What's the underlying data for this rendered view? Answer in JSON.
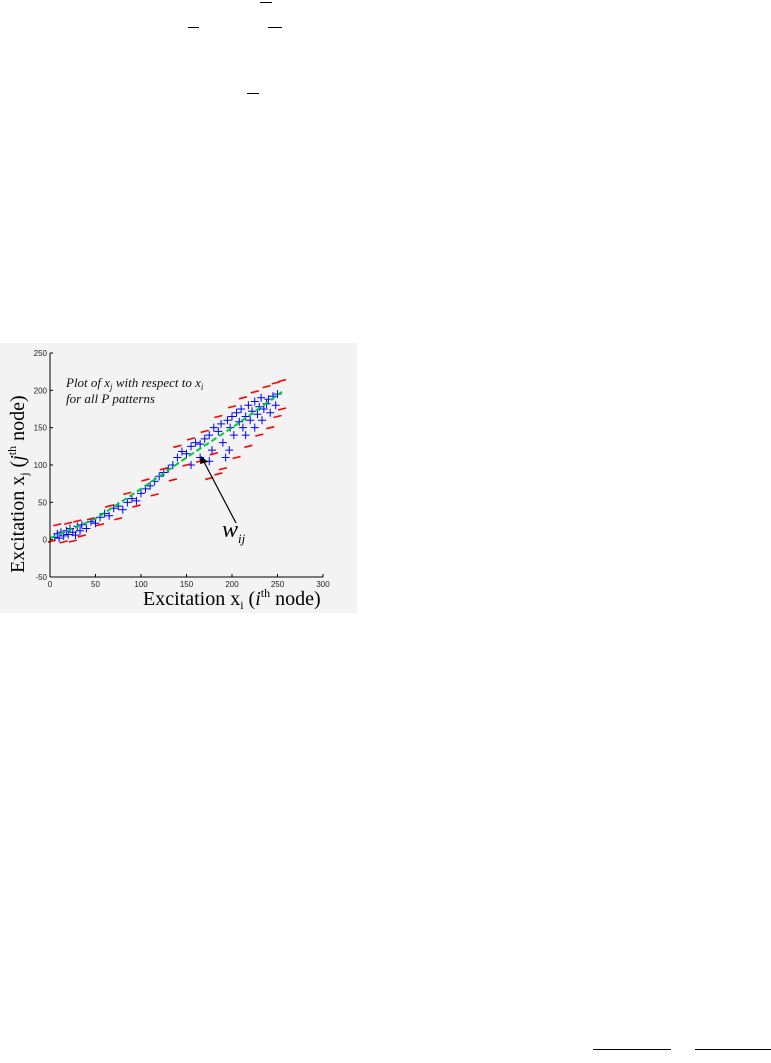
{
  "chart_data": {
    "type": "scatter",
    "title": "",
    "annotation_lines": [
      "Plot of x",
      "j",
      " with respect to x",
      "i",
      "for all P patterns"
    ],
    "pointer_label": {
      "main": "w",
      "sub": "ij"
    },
    "xlabel": {
      "text": "Excitation x",
      "sub": "i",
      "paren_open": " (",
      "var": "i",
      "sup": "th",
      "rest": " node)"
    },
    "ylabel": {
      "text": "Excitation x",
      "sub": "j",
      "paren_open": " (",
      "var": "j",
      "sup": "th",
      "rest": " node)"
    },
    "xlim": [
      0,
      300
    ],
    "ylim": [
      -50,
      250
    ],
    "xticks": [
      "0",
      "50",
      "100",
      "150",
      "200",
      "250",
      "300"
    ],
    "yticks": [
      "-50",
      "0",
      "50",
      "100",
      "150",
      "200",
      "250"
    ],
    "grid": false,
    "series": [
      {
        "marker": "+",
        "color": "#0000ff",
        "points": [
          [
            5,
            3
          ],
          [
            8,
            8
          ],
          [
            10,
            2
          ],
          [
            12,
            10
          ],
          [
            15,
            5
          ],
          [
            18,
            12
          ],
          [
            20,
            7
          ],
          [
            22,
            15
          ],
          [
            25,
            10
          ],
          [
            28,
            6
          ],
          [
            30,
            18
          ],
          [
            33,
            12
          ],
          [
            35,
            20
          ],
          [
            40,
            15
          ],
          [
            45,
            24
          ],
          [
            50,
            22
          ],
          [
            55,
            30
          ],
          [
            60,
            35
          ],
          [
            65,
            32
          ],
          [
            70,
            42
          ],
          [
            75,
            45
          ],
          [
            80,
            40
          ],
          [
            85,
            50
          ],
          [
            90,
            55
          ],
          [
            95,
            52
          ],
          [
            100,
            62
          ],
          [
            105,
            68
          ],
          [
            110,
            72
          ],
          [
            115,
            78
          ],
          [
            120,
            85
          ],
          [
            125,
            90
          ],
          [
            130,
            95
          ],
          [
            135,
            100
          ],
          [
            140,
            110
          ],
          [
            145,
            118
          ],
          [
            150,
            115
          ],
          [
            155,
            125
          ],
          [
            160,
            130
          ],
          [
            165,
            128
          ],
          [
            170,
            135
          ],
          [
            175,
            140
          ],
          [
            178,
            120
          ],
          [
            180,
            150
          ],
          [
            185,
            145
          ],
          [
            188,
            155
          ],
          [
            190,
            130
          ],
          [
            195,
            160
          ],
          [
            198,
            150
          ],
          [
            200,
            165
          ],
          [
            202,
            140
          ],
          [
            205,
            170
          ],
          [
            208,
            158
          ],
          [
            210,
            175
          ],
          [
            212,
            150
          ],
          [
            215,
            165
          ],
          [
            218,
            180
          ],
          [
            220,
            160
          ],
          [
            222,
            172
          ],
          [
            225,
            185
          ],
          [
            228,
            168
          ],
          [
            230,
            178
          ],
          [
            232,
            190
          ],
          [
            235,
            175
          ],
          [
            238,
            182
          ],
          [
            240,
            188
          ],
          [
            242,
            170
          ],
          [
            245,
            192
          ],
          [
            248,
            180
          ],
          [
            250,
            195
          ],
          [
            193,
            110
          ],
          [
            197,
            120
          ],
          [
            175,
            105
          ],
          [
            165,
            110
          ],
          [
            155,
            100
          ],
          [
            215,
            140
          ],
          [
            225,
            150
          ],
          [
            233,
            160
          ]
        ]
      },
      {
        "marker": "−",
        "color": "#ff0000",
        "points": [
          [
            2,
            -2
          ],
          [
            8,
            20
          ],
          [
            15,
            -3
          ],
          [
            20,
            22
          ],
          [
            25,
            -2
          ],
          [
            30,
            25
          ],
          [
            35,
            5
          ],
          [
            45,
            28
          ],
          [
            55,
            20
          ],
          [
            65,
            45
          ],
          [
            75,
            28
          ],
          [
            85,
            62
          ],
          [
            95,
            45
          ],
          [
            105,
            80
          ],
          [
            115,
            60
          ],
          [
            125,
            95
          ],
          [
            135,
            80
          ],
          [
            140,
            125
          ],
          [
            150,
            100
          ],
          [
            155,
            135
          ],
          [
            165,
            105
          ],
          [
            170,
            145
          ],
          [
            180,
            115
          ],
          [
            185,
            165
          ],
          [
            190,
            95
          ],
          [
            200,
            178
          ],
          [
            205,
            110
          ],
          [
            212,
            190
          ],
          [
            218,
            125
          ],
          [
            225,
            198
          ],
          [
            230,
            140
          ],
          [
            238,
            205
          ],
          [
            242,
            150
          ],
          [
            248,
            210
          ],
          [
            250,
            165
          ],
          [
            255,
            213
          ],
          [
            255,
            175
          ],
          [
            175,
            82
          ],
          [
            185,
            88
          ]
        ]
      }
    ],
    "fit_line": {
      "color": "#00cc33",
      "points": [
        [
          0,
          2
        ],
        [
          50,
          28
        ],
        [
          100,
          68
        ],
        [
          150,
          110
        ],
        [
          200,
          150
        ],
        [
          255,
          198
        ]
      ]
    }
  }
}
